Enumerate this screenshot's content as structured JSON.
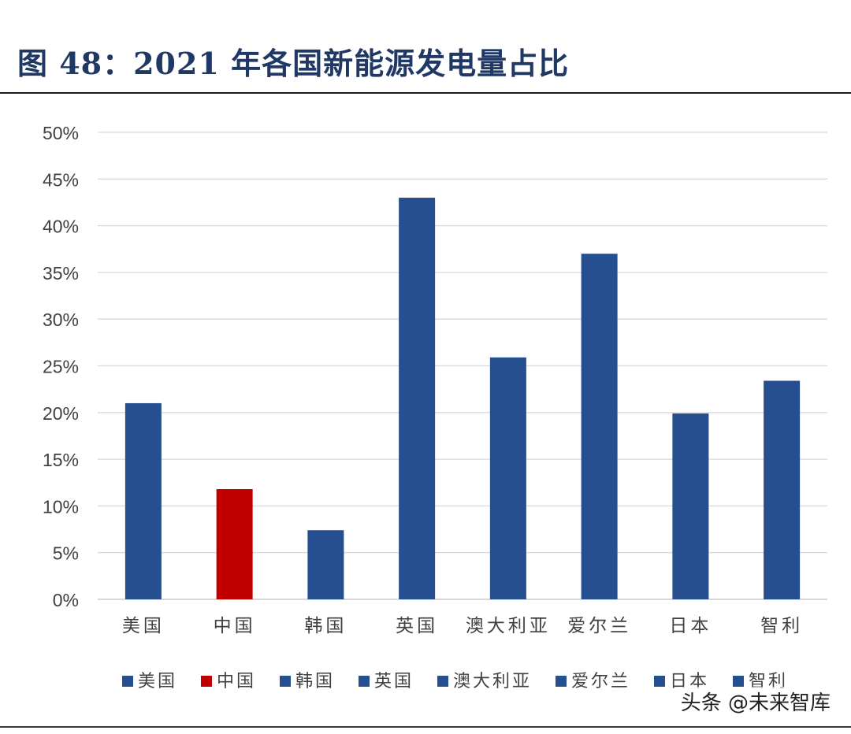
{
  "title": "图 48：2021 年各国新能源发电量占比",
  "watermark": "头条 @未来智库",
  "colors": {
    "title": "#1f3864",
    "bar_default": "#254f91",
    "bar_highlight": "#c00000",
    "grid": "#d9d9d9",
    "axis_text": "#404040"
  },
  "chart_data": {
    "type": "bar",
    "categories": [
      "美国",
      "中国",
      "韩国",
      "英国",
      "澳大利亚",
      "爱尔兰",
      "日本",
      "智利"
    ],
    "values": [
      0.21,
      0.118,
      0.074,
      0.43,
      0.259,
      0.37,
      0.199,
      0.234
    ],
    "highlight": "中国",
    "ylim": [
      0,
      0.5
    ],
    "yticks": [
      "0%",
      "5%",
      "10%",
      "15%",
      "20%",
      "25%",
      "30%",
      "35%",
      "40%",
      "45%",
      "50%"
    ],
    "grid": true,
    "legend_position": "bottom",
    "legend": [
      "美国",
      "中国",
      "韩国",
      "英国",
      "澳大利亚",
      "爱尔兰",
      "日本",
      "智利"
    ]
  }
}
